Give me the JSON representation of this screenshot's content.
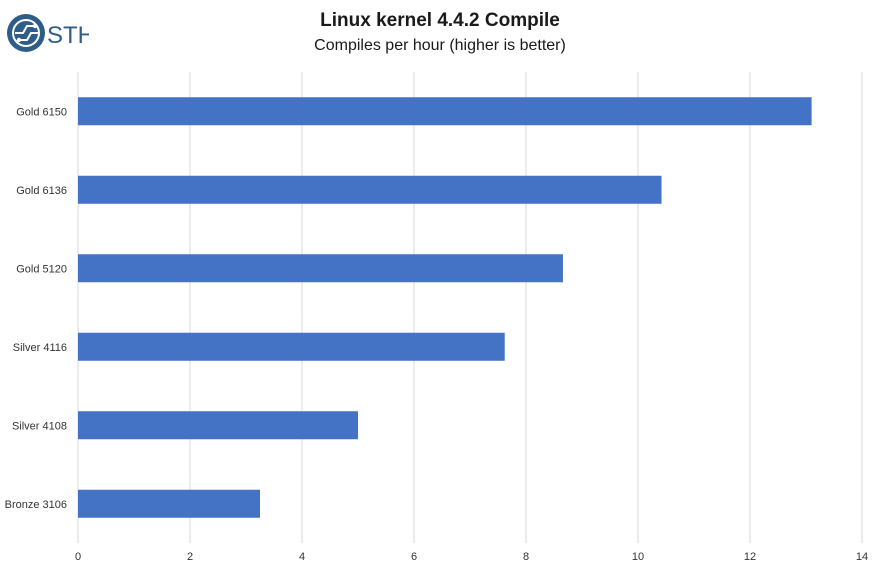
{
  "logo": {
    "text": "STH",
    "icon": "sth-circuit-logo-icon",
    "color": "#2f5d8a"
  },
  "chart_data": {
    "type": "bar",
    "orientation": "horizontal",
    "title": "Linux kernel 4.4.2 Compile",
    "subtitle": "Compiles per hour (higher is better)",
    "xlabel": "",
    "ylabel": "",
    "categories": [
      "Gold 6150",
      "Gold 6136",
      "Gold 5120",
      "Silver 4116",
      "Silver 4108",
      "Bronze 3106"
    ],
    "values": [
      13.1,
      10.42,
      8.66,
      7.62,
      5.0,
      3.25
    ],
    "xlim": [
      0,
      14
    ],
    "xticks": [
      0,
      2,
      4,
      6,
      8,
      10,
      12,
      14
    ],
    "grid": "vertical",
    "legend": "none",
    "bar_color": "#4472c4",
    "grid_color": "#d9d9d9"
  }
}
